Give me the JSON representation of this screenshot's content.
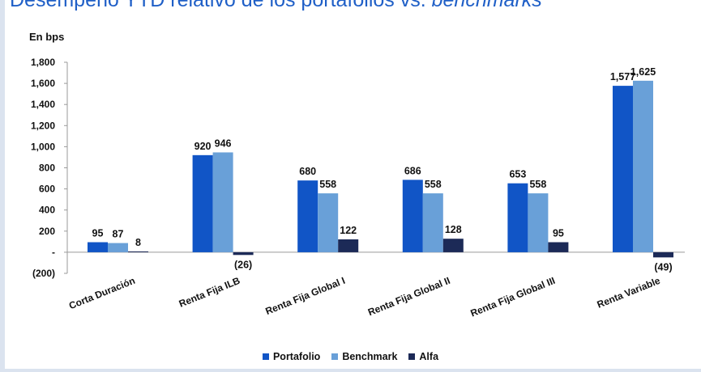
{
  "title": {
    "main": "Desempeño YTD relativo de los portafolios vs.",
    "italic": "benchmarks"
  },
  "chart_data": {
    "type": "bar",
    "unit_label": "En bps",
    "categories": [
      "Corta Duración",
      "Renta Fija ILB",
      "Renta Fija Global I",
      "Renta Fija Global II",
      "Renta Fija Global III",
      "Renta Variable"
    ],
    "series": [
      {
        "name": "Portafolio",
        "color": "#1155c6",
        "values": [
          95,
          920,
          680,
          686,
          653,
          1577
        ]
      },
      {
        "name": "Benchmark",
        "color": "#69a0d8",
        "values": [
          87,
          946,
          558,
          558,
          558,
          1625
        ]
      },
      {
        "name": "Alfa",
        "color": "#1c2a57",
        "values": [
          8,
          -26,
          122,
          128,
          95,
          -49
        ]
      }
    ],
    "data_labels": [
      [
        "95",
        "920",
        "680",
        "686",
        "653",
        "1,577"
      ],
      [
        "87",
        "946",
        "558",
        "558",
        "558",
        "1,625"
      ],
      [
        "8",
        "(26)",
        "122",
        "128",
        "95",
        "(49)"
      ]
    ],
    "yticks": [
      {
        "value": 1800,
        "label": "1,800"
      },
      {
        "value": 1600,
        "label": "1,600"
      },
      {
        "value": 1400,
        "label": "1,400"
      },
      {
        "value": 1200,
        "label": "1,200"
      },
      {
        "value": 1000,
        "label": "1,000"
      },
      {
        "value": 800,
        "label": "800"
      },
      {
        "value": 600,
        "label": "600"
      },
      {
        "value": 400,
        "label": "400"
      },
      {
        "value": 200,
        "label": "200"
      },
      {
        "value": 0,
        "label": "-"
      },
      {
        "value": -200,
        "label": "(200)"
      }
    ],
    "ylim": [
      -200,
      1800
    ],
    "legend_position": "bottom",
    "grid": false
  }
}
